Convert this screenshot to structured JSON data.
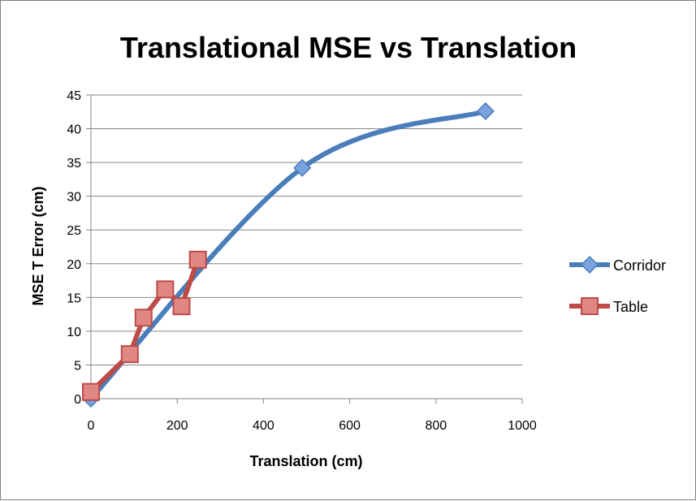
{
  "chart_data": {
    "type": "scatter",
    "title": "Translational MSE vs Translation",
    "xlabel": "Translation  (cm)",
    "ylabel": "MSE T Error  (cm)",
    "xlim": [
      0,
      1000
    ],
    "ylim": [
      0,
      45
    ],
    "xticks": [
      "0",
      "200",
      "400",
      "600",
      "800",
      "1000"
    ],
    "yticks": [
      "0",
      "5",
      "10",
      "15",
      "20",
      "25",
      "30",
      "35",
      "40",
      "45"
    ],
    "grid": "horizontal",
    "legend_position": "right",
    "series": [
      {
        "name": "Corridor",
        "color": "#4a7ebb",
        "marker": "diamond",
        "smooth": true,
        "x": [
          0,
          490,
          915
        ],
        "y": [
          0,
          34.2,
          42.6
        ]
      },
      {
        "name": "Table",
        "color": "#be4b48",
        "marker": "square",
        "smooth": false,
        "x": [
          0,
          90,
          122,
          172,
          210,
          248
        ],
        "y": [
          1.0,
          6.6,
          12.0,
          16.2,
          13.7,
          20.6
        ]
      }
    ]
  }
}
